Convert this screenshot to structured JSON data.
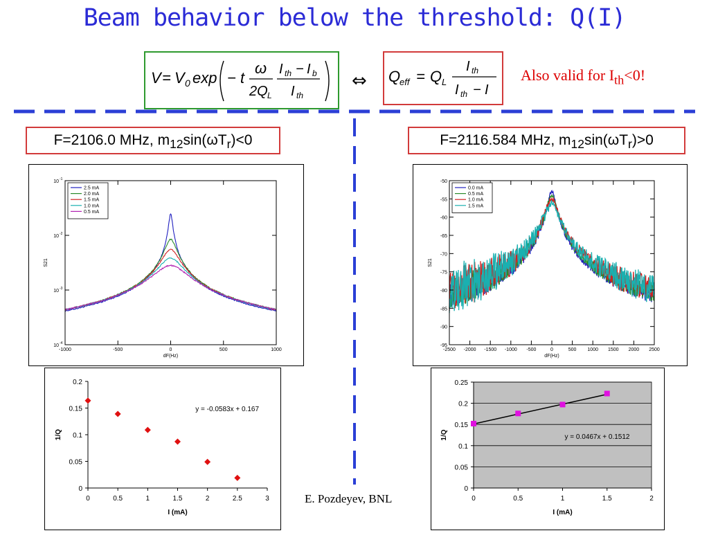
{
  "slide": {
    "title": "Beam behavior below the threshold: Q(I)",
    "also_valid_prefix": "Also valid for I",
    "also_valid_sub": "th",
    "also_valid_suffix": "<0!",
    "equiv_symbol": "⇔",
    "credit": "E. Pozdeyev, BNL",
    "colors": {
      "title": "#2b2bd6",
      "dash": "#2b3fd6",
      "box_red": "#d23a3a",
      "box_green": "#2e9a2e"
    }
  },
  "equation1": {
    "lhs": "V",
    "eq": "=",
    "v0": "V",
    "v0_sub": "0",
    "exp": "exp",
    "neg_t": "− t",
    "omega": "ω",
    "two_q": "2Q",
    "q_sub": "L",
    "ith": "I",
    "ith_sub": "th",
    "minus": "−",
    "ib": "I",
    "ib_sub": "b"
  },
  "equation2": {
    "lhs": "Q",
    "lhs_sub": "eff",
    "eq": "=",
    "ql": "Q",
    "ql_sub": "L",
    "ith": "I",
    "ith_sub": "th",
    "minus": "−",
    "i": "I"
  },
  "panels": {
    "left_label": {
      "prefix": "F=2106.0 MHz, m",
      "sub": "12",
      "mid": "sin(",
      "omega": "ω",
      "t": "T",
      "t_sub": "r",
      "suffix": ")<0"
    },
    "right_label": {
      "prefix": "F=2116.584 MHz, m",
      "sub": "12",
      "mid": "sin(",
      "omega": "ω",
      "t": "T",
      "t_sub": "r",
      "suffix": ")>0"
    }
  },
  "chart_data": [
    {
      "type": "line",
      "id": "left-spectrum",
      "xlabel": "dF(Hz)",
      "ylabel": "S21",
      "xlim": [
        -1000,
        1000
      ],
      "ylim": [
        0.0001,
        0.1
      ],
      "yscale": "log",
      "xticks": [
        -1000,
        -500,
        0,
        500,
        1000
      ],
      "yticks": [
        {
          "value": 0.1,
          "base": "10",
          "exp": "-1"
        },
        {
          "value": 0.01,
          "base": "10",
          "exp": "-2"
        },
        {
          "value": 0.001,
          "base": "10",
          "exp": "-3"
        },
        {
          "value": 0.0001,
          "base": "10",
          "exp": "-4"
        }
      ],
      "legend_position": "top-left",
      "series": [
        {
          "name": "2.5 mA",
          "color": "#1f1fbf",
          "peak": 0.025,
          "fwhm_hz": 30,
          "edge": 0.00045,
          "noise": 0.025
        },
        {
          "name": "2.0 mA",
          "color": "#2a8a2a",
          "peak": 0.0085,
          "fwhm_hz": 95,
          "edge": 0.00045,
          "noise": 0.025
        },
        {
          "name": "1.5 mA",
          "color": "#d02020",
          "peak": 0.0055,
          "fwhm_hz": 145,
          "edge": 0.00045,
          "noise": 0.025
        },
        {
          "name": "1.0 mA",
          "color": "#1ab0b0",
          "peak": 0.0038,
          "fwhm_hz": 210,
          "edge": 0.00045,
          "noise": 0.025
        },
        {
          "name": "0.5 mA",
          "color": "#b020b0",
          "peak": 0.0028,
          "fwhm_hz": 290,
          "edge": 0.00045,
          "noise": 0.025
        }
      ]
    },
    {
      "type": "line",
      "id": "right-spectrum",
      "xlabel": "dF(Hz)",
      "ylabel": "S21",
      "xlim": [
        -2500,
        2500
      ],
      "ylim": [
        -95,
        -50
      ],
      "xticks": [
        -2500,
        -2000,
        -1500,
        -1000,
        -500,
        0,
        500,
        1000,
        1500,
        2000,
        2500
      ],
      "yticks": [
        -50,
        -55,
        -60,
        -65,
        -70,
        -75,
        -80,
        -85,
        -90,
        -95
      ],
      "legend_position": "top-left",
      "series": [
        {
          "name": "0.0 mA",
          "color": "#1f1fbf",
          "peak": -53.0,
          "fwhm_hz": 170,
          "edge": -83.0,
          "noise": 1.2
        },
        {
          "name": "0.5 mA",
          "color": "#2a8a2a",
          "peak": -54.2,
          "fwhm_hz": 215,
          "edge": -83.0,
          "noise": 1.5
        },
        {
          "name": "1.0 mA",
          "color": "#d02020",
          "peak": -55.2,
          "fwhm_hz": 265,
          "edge": -83.0,
          "noise": 2.0
        },
        {
          "name": "1.5 mA",
          "color": "#1ab0b0",
          "peak": -56.5,
          "fwhm_hz": 320,
          "edge": -83.0,
          "noise": 2.3
        }
      ]
    },
    {
      "type": "scatter",
      "id": "left-invq",
      "xlabel": "I (mA)",
      "ylabel": "1/Q",
      "xlim": [
        0,
        3
      ],
      "ylim": [
        0,
        0.2
      ],
      "xticks": [
        0,
        0.5,
        1,
        1.5,
        2,
        2.5,
        3
      ],
      "yticks": [
        0,
        0.05,
        0.1,
        0.15,
        0.2
      ],
      "ytick_labels": [
        "0",
        "0.05",
        "0.1",
        "0.15",
        "0.2"
      ],
      "marker": "diamond",
      "marker_color": "#e01010",
      "points": [
        {
          "x": 0,
          "y": 0.164
        },
        {
          "x": 0.5,
          "y": 0.139
        },
        {
          "x": 1.0,
          "y": 0.109
        },
        {
          "x": 1.5,
          "y": 0.087
        },
        {
          "x": 2.0,
          "y": 0.049
        },
        {
          "x": 2.5,
          "y": 0.019
        }
      ],
      "annotation": "y = -0.0583x + 0.167"
    },
    {
      "type": "scatter",
      "id": "right-invq",
      "xlabel": "I (mA)",
      "ylabel": "1/Q",
      "xlim": [
        0,
        2
      ],
      "ylim": [
        0,
        0.25
      ],
      "xticks": [
        0,
        0.5,
        1,
        1.5,
        2
      ],
      "yticks": [
        0,
        0.05,
        0.1,
        0.15,
        0.2,
        0.25
      ],
      "ytick_labels": [
        "0",
        "0.05",
        "0.1",
        "0.15",
        "0.2",
        "0.25"
      ],
      "marker": "square",
      "marker_color": "#e010e0",
      "plot_bg": "#c0c0c0",
      "grid": "horizontal",
      "points": [
        {
          "x": 0,
          "y": 0.152
        },
        {
          "x": 0.5,
          "y": 0.176
        },
        {
          "x": 1.0,
          "y": 0.197
        },
        {
          "x": 1.5,
          "y": 0.223
        }
      ],
      "fit": {
        "slope": 0.0467,
        "intercept": 0.1512
      },
      "annotation": "y = 0.0467x + 0.1512"
    }
  ]
}
